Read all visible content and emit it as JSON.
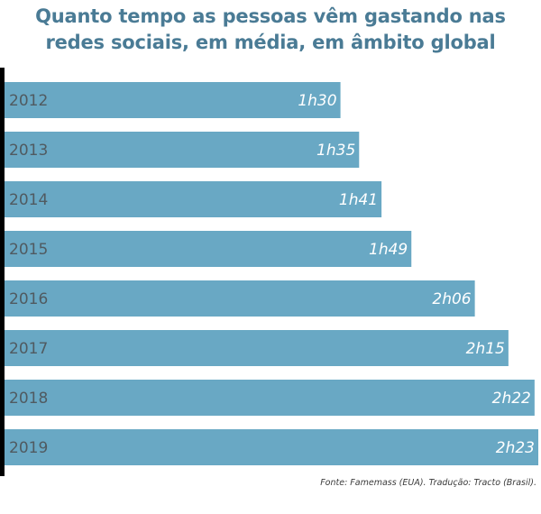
{
  "title": {
    "line1": "Quanto tempo as pessoas vêm gastando nas",
    "line2": "redes sociais, em média, em âmbito global"
  },
  "source": "Fonte: Famemass (EUA). Tradução: Tracto (Brasil).",
  "colors": {
    "bar": "#69a8c4",
    "title": "#4a7b95",
    "axis": "#000000"
  },
  "chart_data": {
    "type": "bar",
    "orientation": "horizontal",
    "title": "Quanto tempo as pessoas vêm gastando nas redes sociais, em média, em âmbito global",
    "categories": [
      "2012",
      "2013",
      "2014",
      "2015",
      "2016",
      "2017",
      "2018",
      "2019"
    ],
    "values": [
      90,
      95,
      101,
      109,
      126,
      135,
      142,
      143
    ],
    "labels": [
      "1h30",
      "1h35",
      "1h41",
      "1h49",
      "2h06",
      "2h15",
      "2h22",
      "2h23"
    ],
    "unit": "minutes",
    "grid": false,
    "legend": "none"
  }
}
